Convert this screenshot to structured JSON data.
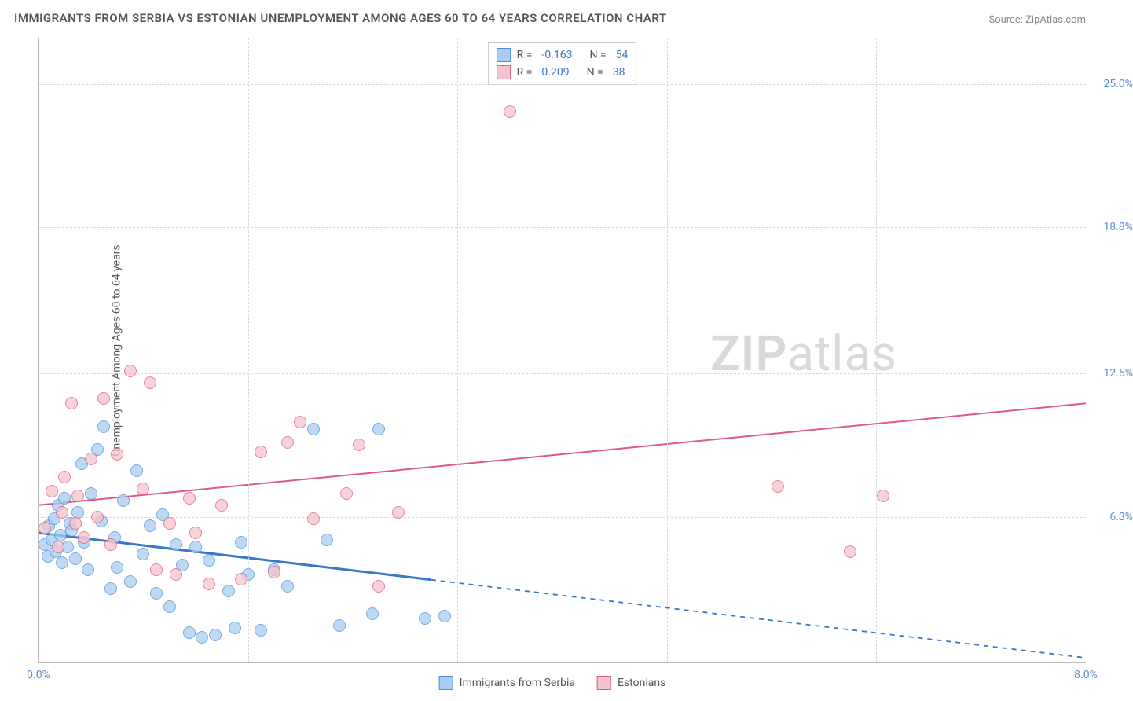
{
  "title": "IMMIGRANTS FROM SERBIA VS ESTONIAN UNEMPLOYMENT AMONG AGES 60 TO 64 YEARS CORRELATION CHART",
  "source_label": "Source: ZipAtlas.com",
  "y_axis_label": "Unemployment Among Ages 60 to 64 years",
  "watermark": {
    "bold": "ZIP",
    "rest": "atlas"
  },
  "chart": {
    "type": "scatter",
    "xlim": [
      0,
      8.0
    ],
    "ylim": [
      0,
      27
    ],
    "y_ticks": [
      {
        "v": 6.3,
        "label": "6.3%"
      },
      {
        "v": 12.5,
        "label": "12.5%"
      },
      {
        "v": 18.8,
        "label": "18.8%"
      },
      {
        "v": 25.0,
        "label": "25.0%"
      }
    ],
    "x_ticks_left": {
      "v": 0.0,
      "label": "0.0%"
    },
    "x_ticks_right": {
      "v": 8.0,
      "label": "8.0%"
    },
    "x_grid_vs": [
      1.6,
      3.2,
      4.8,
      6.4
    ],
    "background_color": "#ffffff",
    "grid_color": "#d8d8d8",
    "axis_color": "#bbbbbb",
    "tick_label_color": "#5b8fd6",
    "marker_radius": 8,
    "series": [
      {
        "key": "serbia",
        "label": "Immigrants from Serbia",
        "fill": "#a9cdf1",
        "stroke": "#4c8fd9",
        "R": "-0.163",
        "N": "54",
        "trend": {
          "x0": 0,
          "y0": 5.6,
          "x1": 8.0,
          "y1": 0.2,
          "solid_until_x": 3.0,
          "color": "#3a77c9",
          "width": 3
        },
        "points": [
          [
            0.05,
            5.1
          ],
          [
            0.07,
            4.6
          ],
          [
            0.08,
            5.9
          ],
          [
            0.1,
            5.3
          ],
          [
            0.12,
            6.2
          ],
          [
            0.13,
            4.8
          ],
          [
            0.15,
            6.8
          ],
          [
            0.17,
            5.5
          ],
          [
            0.18,
            4.3
          ],
          [
            0.2,
            7.1
          ],
          [
            0.22,
            5.0
          ],
          [
            0.24,
            6.0
          ],
          [
            0.25,
            5.7
          ],
          [
            0.28,
            4.5
          ],
          [
            0.3,
            6.5
          ],
          [
            0.33,
            8.6
          ],
          [
            0.35,
            5.2
          ],
          [
            0.38,
            4.0
          ],
          [
            0.4,
            7.3
          ],
          [
            0.45,
            9.2
          ],
          [
            0.48,
            6.1
          ],
          [
            0.5,
            10.2
          ],
          [
            0.55,
            3.2
          ],
          [
            0.58,
            5.4
          ],
          [
            0.6,
            4.1
          ],
          [
            0.65,
            7.0
          ],
          [
            0.7,
            3.5
          ],
          [
            0.75,
            8.3
          ],
          [
            0.8,
            4.7
          ],
          [
            0.85,
            5.9
          ],
          [
            0.9,
            3.0
          ],
          [
            0.95,
            6.4
          ],
          [
            1.0,
            2.4
          ],
          [
            1.05,
            5.1
          ],
          [
            1.1,
            4.2
          ],
          [
            1.15,
            1.3
          ],
          [
            1.2,
            5.0
          ],
          [
            1.25,
            1.1
          ],
          [
            1.3,
            4.4
          ],
          [
            1.35,
            1.2
          ],
          [
            1.45,
            3.1
          ],
          [
            1.5,
            1.5
          ],
          [
            1.55,
            5.2
          ],
          [
            1.6,
            3.8
          ],
          [
            1.7,
            1.4
          ],
          [
            1.8,
            4.0
          ],
          [
            1.9,
            3.3
          ],
          [
            2.1,
            10.1
          ],
          [
            2.2,
            5.3
          ],
          [
            2.3,
            1.6
          ],
          [
            2.55,
            2.1
          ],
          [
            2.6,
            10.1
          ],
          [
            2.95,
            1.9
          ],
          [
            3.1,
            2.0
          ]
        ]
      },
      {
        "key": "estonians",
        "label": "Estonians",
        "fill": "#f6c4ce",
        "stroke": "#e05a7c",
        "R": "0.209",
        "N": "38",
        "trend": {
          "x0": 0,
          "y0": 6.8,
          "x1": 8.0,
          "y1": 11.2,
          "solid_until_x": 8.0,
          "color": "#e05a7c",
          "width": 2
        },
        "points": [
          [
            0.05,
            5.8
          ],
          [
            0.1,
            7.4
          ],
          [
            0.15,
            5.0
          ],
          [
            0.18,
            6.5
          ],
          [
            0.2,
            8.0
          ],
          [
            0.25,
            11.2
          ],
          [
            0.28,
            6.0
          ],
          [
            0.3,
            7.2
          ],
          [
            0.35,
            5.4
          ],
          [
            0.4,
            8.8
          ],
          [
            0.45,
            6.3
          ],
          [
            0.5,
            11.4
          ],
          [
            0.55,
            5.1
          ],
          [
            0.6,
            9.0
          ],
          [
            0.7,
            12.6
          ],
          [
            0.8,
            7.5
          ],
          [
            0.85,
            12.1
          ],
          [
            0.9,
            4.0
          ],
          [
            1.0,
            6.0
          ],
          [
            1.05,
            3.8
          ],
          [
            1.15,
            7.1
          ],
          [
            1.2,
            5.6
          ],
          [
            1.3,
            3.4
          ],
          [
            1.4,
            6.8
          ],
          [
            1.55,
            3.6
          ],
          [
            1.7,
            9.1
          ],
          [
            1.8,
            3.9
          ],
          [
            1.9,
            9.5
          ],
          [
            2.0,
            10.4
          ],
          [
            2.1,
            6.2
          ],
          [
            2.35,
            7.3
          ],
          [
            2.45,
            9.4
          ],
          [
            2.6,
            3.3
          ],
          [
            2.75,
            6.5
          ],
          [
            3.6,
            23.8
          ],
          [
            5.65,
            7.6
          ],
          [
            6.2,
            4.8
          ],
          [
            6.45,
            7.2
          ]
        ]
      }
    ]
  },
  "legend_top": {
    "r_label": "R =",
    "n_label": "N ="
  }
}
